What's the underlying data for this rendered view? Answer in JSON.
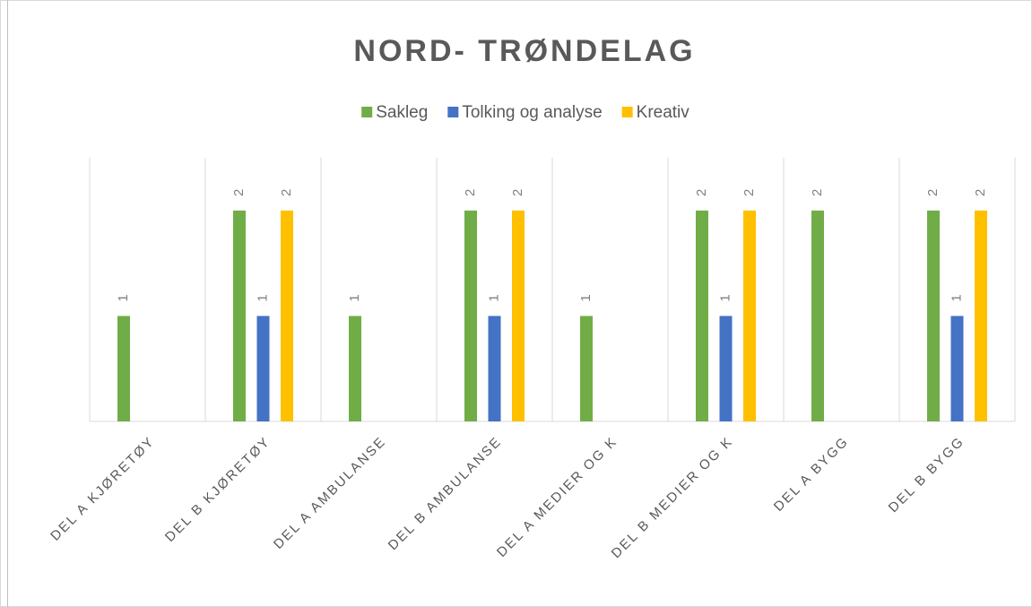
{
  "chart_data": {
    "type": "bar",
    "title": "NORD- TRØNDELAG",
    "categories": [
      "DEL A KJØRETØY",
      "DEL B KJØRETØY",
      "DEL A AMBULANSE",
      "DEL B AMBULANSE",
      "DEL A MEDIER OG K",
      "DEL B MEDIER OG K",
      "DEL A BYGG",
      "DEL B BYGG"
    ],
    "series": [
      {
        "name": "Sakleg",
        "color": "#70ad47",
        "values": [
          1,
          2,
          1,
          2,
          1,
          2,
          2,
          2
        ]
      },
      {
        "name": "Tolking og analyse",
        "color": "#4472c4",
        "values": [
          null,
          1,
          null,
          1,
          null,
          1,
          null,
          1
        ]
      },
      {
        "name": "Kreativ",
        "color": "#ffc000",
        "values": [
          null,
          2,
          null,
          2,
          null,
          2,
          null,
          2
        ]
      }
    ],
    "ylim": [
      0,
      2.5
    ],
    "legend": "top",
    "data_labels": true
  }
}
